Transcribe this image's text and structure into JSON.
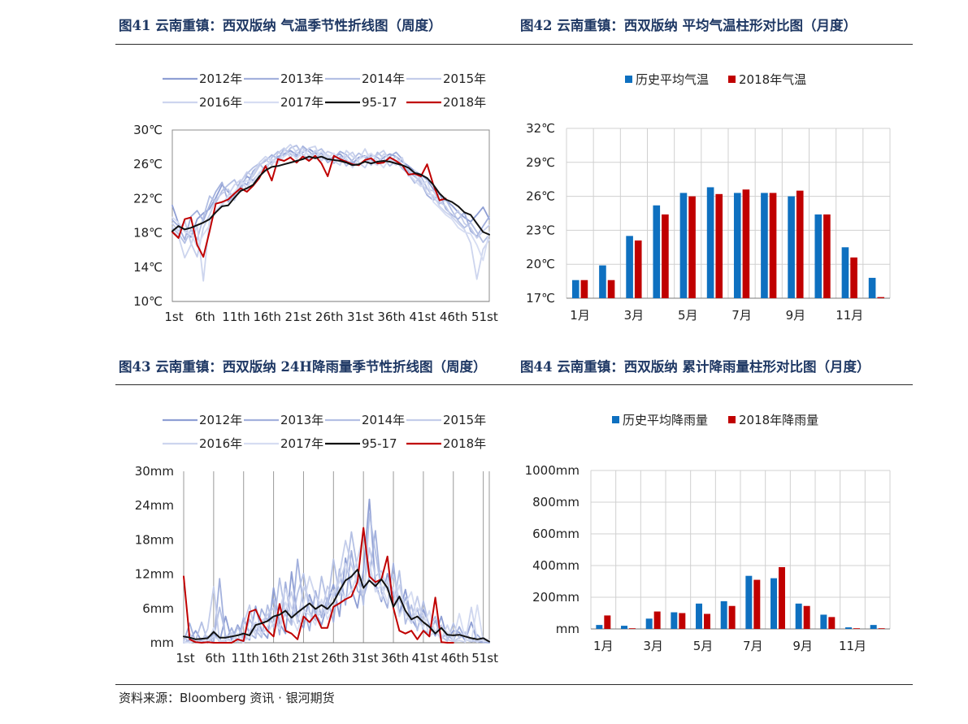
{
  "headers": {
    "fig41": "图41 云南重镇：西双版纳 气温季节性折线图（周度）",
    "fig42": "图42 云南重镇：西双版纳 平均气温柱形对比图（月度）",
    "fig43": "图43 云南重镇：西双版纳 24H降雨量季节性折线图（周度）",
    "fig44": "图44 云南重镇：西双版纳 累计降雨量柱形对比图（月度）"
  },
  "source": "资料来源：Bloomberg 资讯 · 银河期货",
  "colors": {
    "c2012": "#8f9fd4",
    "c2013": "#a3b1dd",
    "c2014": "#b4c0e4",
    "c2015": "#c4cdea",
    "c2016": "#cdd5ee",
    "c2017": "#d6ddf2",
    "avg": "#111111",
    "y2018": "#c00000",
    "barBlue": "#0e70c0",
    "barRed": "#c00000",
    "grid": "#c8c8c8"
  },
  "chart_data": [
    {
      "id": "fig41",
      "type": "line",
      "unit": "℃",
      "y_ticks": [
        "10℃",
        "14℃",
        "18℃",
        "22℃",
        "26℃",
        "30℃"
      ],
      "ylim": [
        10,
        30
      ],
      "x_ticks": [
        "1st",
        "6th",
        "11th",
        "16th",
        "21st",
        "26th",
        "31st",
        "36th",
        "41st",
        "46th",
        "51st"
      ],
      "legend": [
        "2012年",
        "2013年",
        "2014年",
        "2015年",
        "2016年",
        "2017年",
        "95-17",
        "2018年"
      ],
      "series": [
        {
          "name": "2012年",
          "values": [
            21.2,
            19.1,
            18.2,
            17.5,
            19.6,
            20.3,
            20.8,
            22.1,
            23.6,
            22.8,
            21.9,
            23.4,
            24.6,
            24.1,
            25.0,
            25.8,
            26.3,
            26.9,
            27.2,
            27.6,
            27.1,
            27.4,
            27.8,
            27.3,
            26.8,
            26.5,
            26.9,
            27.2,
            26.4,
            26.1,
            26.8,
            27.0,
            26.5,
            26.2,
            26.8,
            27.2,
            26.9,
            26.3,
            25.8,
            25.2,
            24.8,
            24.2,
            23.1,
            22.6,
            21.8,
            21.2,
            20.4,
            19.8,
            19.3,
            20.1,
            21.0,
            19.6
          ]
        },
        {
          "name": "2013年",
          "values": [
            19.5,
            18.8,
            17.2,
            19.9,
            20.6,
            19.4,
            21.2,
            22.8,
            23.9,
            21.6,
            22.4,
            24.1,
            23.6,
            25.2,
            25.9,
            26.4,
            27.1,
            26.6,
            27.8,
            27.2,
            26.9,
            28.1,
            27.5,
            26.8,
            27.3,
            26.2,
            26.7,
            27.5,
            27.1,
            26.3,
            25.9,
            26.4,
            27.1,
            26.8,
            26.2,
            26.9,
            27.4,
            26.6,
            25.1,
            24.6,
            23.9,
            22.4,
            21.8,
            22.6,
            20.8,
            20.1,
            19.6,
            20.4,
            18.2,
            17.6,
            18.8,
            19.9
          ]
        },
        {
          "name": "2014年",
          "values": [
            18.6,
            17.9,
            16.8,
            18.4,
            17.2,
            19.8,
            22.3,
            21.5,
            22.9,
            23.6,
            24.2,
            22.8,
            24.9,
            25.6,
            26.1,
            25.2,
            26.8,
            27.5,
            26.9,
            27.9,
            28.2,
            27.1,
            26.6,
            27.4,
            27.8,
            26.9,
            26.1,
            26.9,
            25.8,
            26.5,
            27.3,
            26.8,
            25.9,
            27.4,
            26.7,
            25.8,
            26.4,
            25.5,
            24.9,
            23.8,
            24.6,
            23.2,
            22.1,
            21.4,
            21.9,
            20.6,
            19.4,
            18.6,
            19.2,
            18.1,
            16.9,
            17.8
          ]
        },
        {
          "name": "2015年",
          "values": [
            19.1,
            18.2,
            19.4,
            16.8,
            15.2,
            18.6,
            20.1,
            21.9,
            22.6,
            23.1,
            21.8,
            23.9,
            25.1,
            24.6,
            25.8,
            26.6,
            25.9,
            27.3,
            27.9,
            26.8,
            27.6,
            27.9,
            26.9,
            27.6,
            26.8,
            27.5,
            27.2,
            26.6,
            26.9,
            27.4,
            26.2,
            25.6,
            26.9,
            27.1,
            27.6,
            26.4,
            26.9,
            25.8,
            25.4,
            24.8,
            23.6,
            23.1,
            22.9,
            21.6,
            21.1,
            19.8,
            20.6,
            19.1,
            18.6,
            17.4,
            18.2,
            18.9
          ]
        },
        {
          "name": "2016年",
          "values": [
            18.2,
            17.6,
            15.1,
            16.6,
            18.9,
            12.4,
            19.6,
            20.4,
            21.2,
            22.4,
            23.6,
            24.2,
            23.1,
            24.8,
            26.2,
            26.9,
            26.4,
            26.1,
            27.6,
            28.3,
            27.4,
            26.8,
            27.9,
            28.1,
            26.4,
            27.1,
            26.4,
            25.9,
            27.6,
            26.9,
            26.5,
            27.8,
            26.3,
            25.9,
            27.2,
            26.6,
            25.9,
            26.8,
            24.6,
            25.3,
            24.1,
            22.6,
            22.4,
            21.1,
            20.4,
            19.9,
            19.1,
            18.4,
            16.8,
            12.6,
            16.1,
            17.2
          ]
        },
        {
          "name": "2017年",
          "values": [
            19.8,
            19.2,
            18.1,
            17.9,
            16.4,
            17.8,
            18.9,
            20.6,
            21.4,
            22.1,
            22.8,
            23.6,
            24.1,
            23.9,
            25.1,
            25.6,
            26.6,
            26.2,
            26.9,
            27.4,
            26.6,
            27.6,
            27.1,
            26.9,
            27.5,
            26.8,
            27.3,
            26.2,
            26.7,
            25.6,
            26.6,
            26.9,
            27.3,
            26.4,
            25.6,
            26.8,
            26.1,
            25.9,
            24.9,
            24.1,
            23.4,
            24.1,
            21.6,
            20.9,
            20.1,
            19.6,
            18.6,
            18.1,
            17.9,
            16.6,
            14.8,
            18.1
          ]
        },
        {
          "name": "95-17",
          "values": [
            18.2,
            18.8,
            18.4,
            18.6,
            18.9,
            19.2,
            19.6,
            20.4,
            21.1,
            21.2,
            22.1,
            22.9,
            23.2,
            23.6,
            24.6,
            25.3,
            25.7,
            25.8,
            26.0,
            26.2,
            26.4,
            26.6,
            26.9,
            26.7,
            26.9,
            26.6,
            26.5,
            26.4,
            26.2,
            25.9,
            26.0,
            26.3,
            26.1,
            26.3,
            26.4,
            26.3,
            26.1,
            25.9,
            25.6,
            25.0,
            24.8,
            24.4,
            23.6,
            22.6,
            21.9,
            21.6,
            21.1,
            20.4,
            20.1,
            19.1,
            18.1,
            17.8
          ]
        },
        {
          "name": "2018年",
          "values": [
            18.1,
            17.4,
            19.6,
            19.8,
            16.6,
            15.2,
            18.2,
            21.4,
            21.6,
            21.9,
            22.6,
            23.2,
            22.8,
            23.5,
            24.4,
            25.8,
            24.1,
            26.6,
            26.4,
            26.8,
            26.2,
            26.9,
            26.4,
            27.0,
            26.1,
            24.6,
            27.0,
            26.6,
            26.3,
            26.0,
            25.9,
            26.5,
            26.7,
            26.1,
            26.2,
            26.8,
            26.4,
            25.9,
            24.8,
            24.9,
            24.6,
            26.0,
            23.6,
            21.8,
            22.0
          ]
        }
      ]
    },
    {
      "id": "fig42",
      "type": "bar",
      "unit": "℃",
      "y_ticks": [
        "17℃",
        "20℃",
        "23℃",
        "26℃",
        "29℃",
        "32℃"
      ],
      "ylim": [
        17,
        32
      ],
      "categories": [
        "1月",
        "2月",
        "3月",
        "4月",
        "5月",
        "6月",
        "7月",
        "8月",
        "9月",
        "10月",
        "11月",
        "12月"
      ],
      "x_tick_labels": [
        "1月",
        "3月",
        "5月",
        "7月",
        "9月",
        "11月"
      ],
      "legend": [
        "历史平均气温",
        "2018年气温"
      ],
      "series": [
        {
          "name": "历史平均气温",
          "values": [
            18.6,
            19.9,
            22.5,
            25.2,
            26.3,
            26.8,
            26.3,
            26.3,
            26.0,
            24.4,
            21.5,
            18.8
          ]
        },
        {
          "name": "2018年气温",
          "values": [
            18.6,
            18.6,
            22.1,
            24.4,
            26.0,
            26.2,
            26.6,
            26.3,
            26.5,
            24.4,
            20.6,
            17.1
          ]
        }
      ]
    },
    {
      "id": "fig43",
      "type": "line",
      "unit": "mm",
      "y_ticks": [
        "mm",
        "6mm",
        "12mm",
        "18mm",
        "24mm",
        "30mm"
      ],
      "ylim": [
        0,
        30
      ],
      "x_ticks": [
        "1st",
        "6th",
        "11th",
        "16th",
        "21st",
        "26th",
        "31st",
        "36th",
        "41st",
        "46th",
        "51st"
      ],
      "legend": [
        "2012年",
        "2013年",
        "2014年",
        "2015年",
        "2016年",
        "2017年",
        "95-17",
        "2018年"
      ],
      "series": [
        {
          "name": "2012年",
          "values": [
            0,
            0.5,
            2.1,
            0.3,
            0,
            1.8,
            0.2,
            4.6,
            0.4,
            3.1,
            1.2,
            0.5,
            6.4,
            2.1,
            0.8,
            9.6,
            3.4,
            1.6,
            12.4,
            4.2,
            2.6,
            8.4,
            5.3,
            3.1,
            6.8,
            10.2,
            4.6,
            14.8,
            9.4,
            6.1,
            12.6,
            25.1,
            10.4,
            7.2,
            12.1,
            8.6,
            5.1,
            9.3,
            4.2,
            2.4,
            5.8,
            3.1,
            1.2,
            4.6,
            0.6,
            2.1,
            1.8,
            0.4,
            3.6,
            0.2,
            0.1,
            0
          ]
        },
        {
          "name": "2013年",
          "values": [
            0.2,
            3.4,
            0,
            0.6,
            1.1,
            0,
            11.2,
            0.3,
            2.6,
            0.1,
            4.4,
            1.6,
            0.8,
            5.9,
            3.8,
            7.6,
            1.4,
            10.6,
            3.2,
            14.6,
            6.3,
            2.1,
            9.1,
            4.4,
            7.8,
            3.6,
            12.9,
            6.6,
            16.1,
            9.1,
            7.9,
            11.6,
            19.6,
            8.9,
            6.1,
            13.9,
            4.6,
            7.9,
            3.6,
            5.9,
            2.2,
            1.6,
            3.9,
            0.9,
            1.5,
            0.4,
            2.8,
            0.6,
            0.2,
            1.4,
            0.3,
            0
          ]
        },
        {
          "name": "2014年",
          "values": [
            1.1,
            0,
            0.4,
            3.6,
            0.2,
            0.8,
            6.2,
            1.3,
            0,
            2.8,
            0.6,
            4.1,
            2.2,
            0.9,
            6.6,
            2.7,
            11.3,
            4.9,
            3.1,
            8.6,
            12.1,
            5.4,
            3.9,
            11.6,
            6.6,
            14.6,
            8.3,
            11.1,
            19.4,
            12.9,
            6.6,
            22.6,
            15.9,
            9.1,
            10.6,
            6.3,
            12.6,
            3.3,
            6.6,
            2.1,
            7.3,
            2.6,
            4.6,
            1.1,
            0.3,
            3.4,
            0.8,
            1.6,
            0.2,
            0.4,
            0.9,
            0.1
          ]
        },
        {
          "name": "2015年",
          "values": [
            0.4,
            1.6,
            0,
            0.2,
            2.4,
            9.8,
            0.1,
            0.6,
            1.6,
            0.2,
            3.2,
            6.6,
            1.1,
            3.6,
            4.9,
            6.1,
            2.6,
            5.4,
            8.9,
            3.4,
            9.8,
            7.6,
            4.6,
            5.1,
            9.9,
            7.9,
            11.9,
            17.9,
            13.6,
            10.6,
            8.6,
            16.6,
            11.6,
            12.6,
            9.1,
            11.9,
            7.4,
            5.6,
            4.1,
            8.1,
            3.6,
            2.9,
            1.9,
            3.1,
            0.6,
            0.2,
            0.9,
            1.9,
            0.4,
            0.1,
            0.6,
            0.2
          ]
        },
        {
          "name": "2016年",
          "values": [
            0,
            0.1,
            0.6,
            0,
            0.3,
            1.2,
            0.4,
            0.1,
            1.8,
            0.6,
            0,
            2.1,
            3.6,
            1.4,
            2.8,
            4.6,
            5.9,
            9.4,
            6.1,
            4.1,
            6.9,
            11.6,
            8.1,
            6.6,
            5.1,
            8.9,
            10.6,
            13.9,
            11.1,
            14.6,
            18.9,
            12.6,
            9.6,
            7.6,
            11.1,
            6.9,
            10.1,
            5.1,
            3.4,
            6.1,
            5.1,
            1.1,
            2.1,
            0.6,
            3.1,
            0.2,
            0.4,
            0.1,
            6.2,
            0.3,
            0.6,
            0.2
          ]
        },
        {
          "name": "2017年",
          "values": [
            0.2,
            0,
            0.4,
            0.8,
            0.1,
            2.6,
            0.3,
            0.6,
            0.2,
            1.6,
            0.4,
            0.8,
            2.6,
            4.1,
            1.6,
            3.6,
            2.4,
            7.1,
            4.6,
            2.1,
            5.6,
            4.9,
            3.1,
            7.6,
            4.1,
            6.1,
            9.6,
            7.6,
            9.1,
            12.1,
            10.1,
            14.1,
            8.9,
            10.1,
            7.1,
            9.6,
            4.6,
            6.9,
            8.9,
            4.1,
            2.6,
            5.6,
            1.6,
            2.6,
            1.9,
            0.6,
            5.1,
            0.6,
            0.3,
            6.6,
            0.2,
            0.4
          ]
        },
        {
          "name": "95-17",
          "values": [
            1.1,
            0.9,
            0.6,
            0.7,
            0.8,
            1.9,
            0.9,
            0.9,
            1.1,
            1.3,
            1.6,
            1.3,
            3.1,
            3.4,
            3.8,
            4.6,
            4.9,
            5.6,
            4.4,
            5.3,
            6.1,
            6.9,
            5.9,
            6.6,
            5.9,
            7.1,
            9.1,
            10.9,
            11.6,
            12.8,
            9.6,
            10.9,
            9.9,
            11.1,
            9.6,
            6.3,
            8.1,
            5.6,
            4.1,
            4.6,
            3.6,
            2.8,
            1.6,
            2.6,
            1.4,
            1.3,
            1.4,
            1.1,
            0.8,
            0.6,
            0.8,
            0.2
          ]
        },
        {
          "name": "2018年",
          "values": [
            11.6,
            0.6,
            0.1,
            0,
            0.1,
            0,
            0,
            0,
            0,
            0.6,
            0.3,
            5.4,
            5.8,
            3.6,
            2.1,
            1.1,
            6.8,
            2.1,
            1.6,
            0.6,
            4.6,
            3.6,
            4.9,
            2.6,
            2.6,
            6.3,
            6.9,
            7.6,
            8.1,
            10.6,
            20.1,
            11.6,
            10.6,
            11.1,
            15.1,
            6.1,
            2.1,
            1.6,
            2.1,
            0.6,
            2.1,
            1.1,
            7.9,
            0.1,
            0,
            0
          ]
        }
      ]
    },
    {
      "id": "fig44",
      "type": "bar",
      "unit": "mm",
      "y_ticks": [
        "mm",
        "200mm",
        "400mm",
        "600mm",
        "800mm",
        "1000mm"
      ],
      "ylim": [
        0,
        1000
      ],
      "categories": [
        "1月",
        "2月",
        "3月",
        "4月",
        "5月",
        "6月",
        "7月",
        "8月",
        "9月",
        "10月",
        "11月",
        "12月"
      ],
      "x_tick_labels": [
        "1月",
        "3月",
        "5月",
        "7月",
        "9月",
        "11月"
      ],
      "legend": [
        "历史平均降雨量",
        "2018年降雨量"
      ],
      "series": [
        {
          "name": "历史平均降雨量",
          "values": [
            25,
            20,
            65,
            105,
            160,
            175,
            335,
            320,
            160,
            90,
            10,
            25
          ]
        },
        {
          "name": "2018年降雨量",
          "values": [
            85,
            0,
            110,
            100,
            95,
            145,
            310,
            390,
            145,
            75,
            0,
            0
          ]
        }
      ]
    }
  ]
}
